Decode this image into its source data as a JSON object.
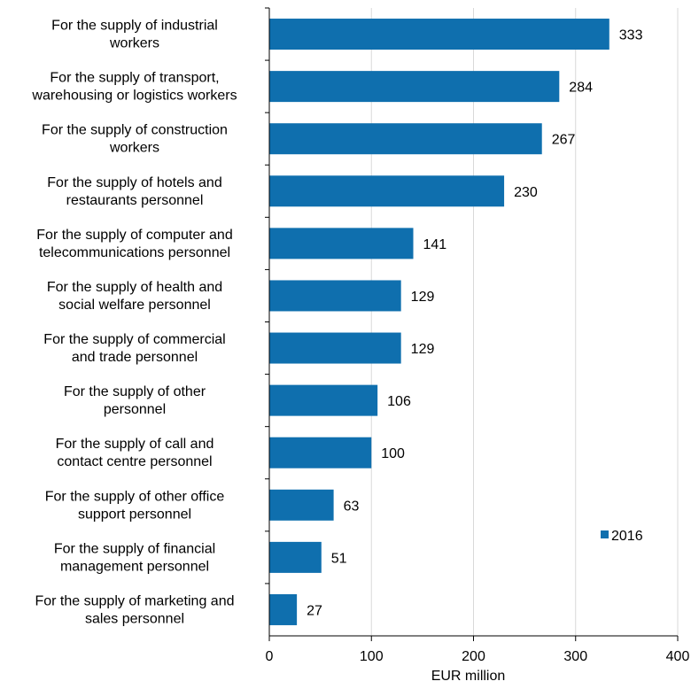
{
  "chart_data": {
    "type": "bar",
    "orientation": "horizontal",
    "categories": [
      [
        "For the supply of industrial",
        "workers"
      ],
      [
        "For the supply of transport,",
        "warehousing or logistics workers"
      ],
      [
        "For the supply of construction",
        "workers"
      ],
      [
        "For the supply of hotels and",
        "restaurants personnel"
      ],
      [
        "For the supply of computer and",
        "telecommunications personnel"
      ],
      [
        "For the supply of health and",
        "social welfare personnel"
      ],
      [
        "For the supply of commercial",
        "and trade personnel"
      ],
      [
        "For the supply of other",
        "personnel"
      ],
      [
        "For the supply of call and",
        "contact centre personnel"
      ],
      [
        "For the supply of other office",
        "support personnel"
      ],
      [
        "For the supply of financial",
        "management personnel"
      ],
      [
        "For the supply of marketing and",
        "sales personnel"
      ]
    ],
    "series": [
      {
        "name": "2016",
        "values": [
          333,
          284,
          267,
          230,
          141,
          129,
          129,
          106,
          100,
          63,
          51,
          27
        ]
      }
    ],
    "xlabel": "EUR million",
    "xlim": [
      0,
      400
    ],
    "xticks": [
      0,
      100,
      200,
      300,
      400
    ],
    "grid": "vertical",
    "legend_position": "bottom-right",
    "colors": {
      "bar": "#0f6fae",
      "grid": "#d9d9d9",
      "axis": "#000000"
    }
  }
}
